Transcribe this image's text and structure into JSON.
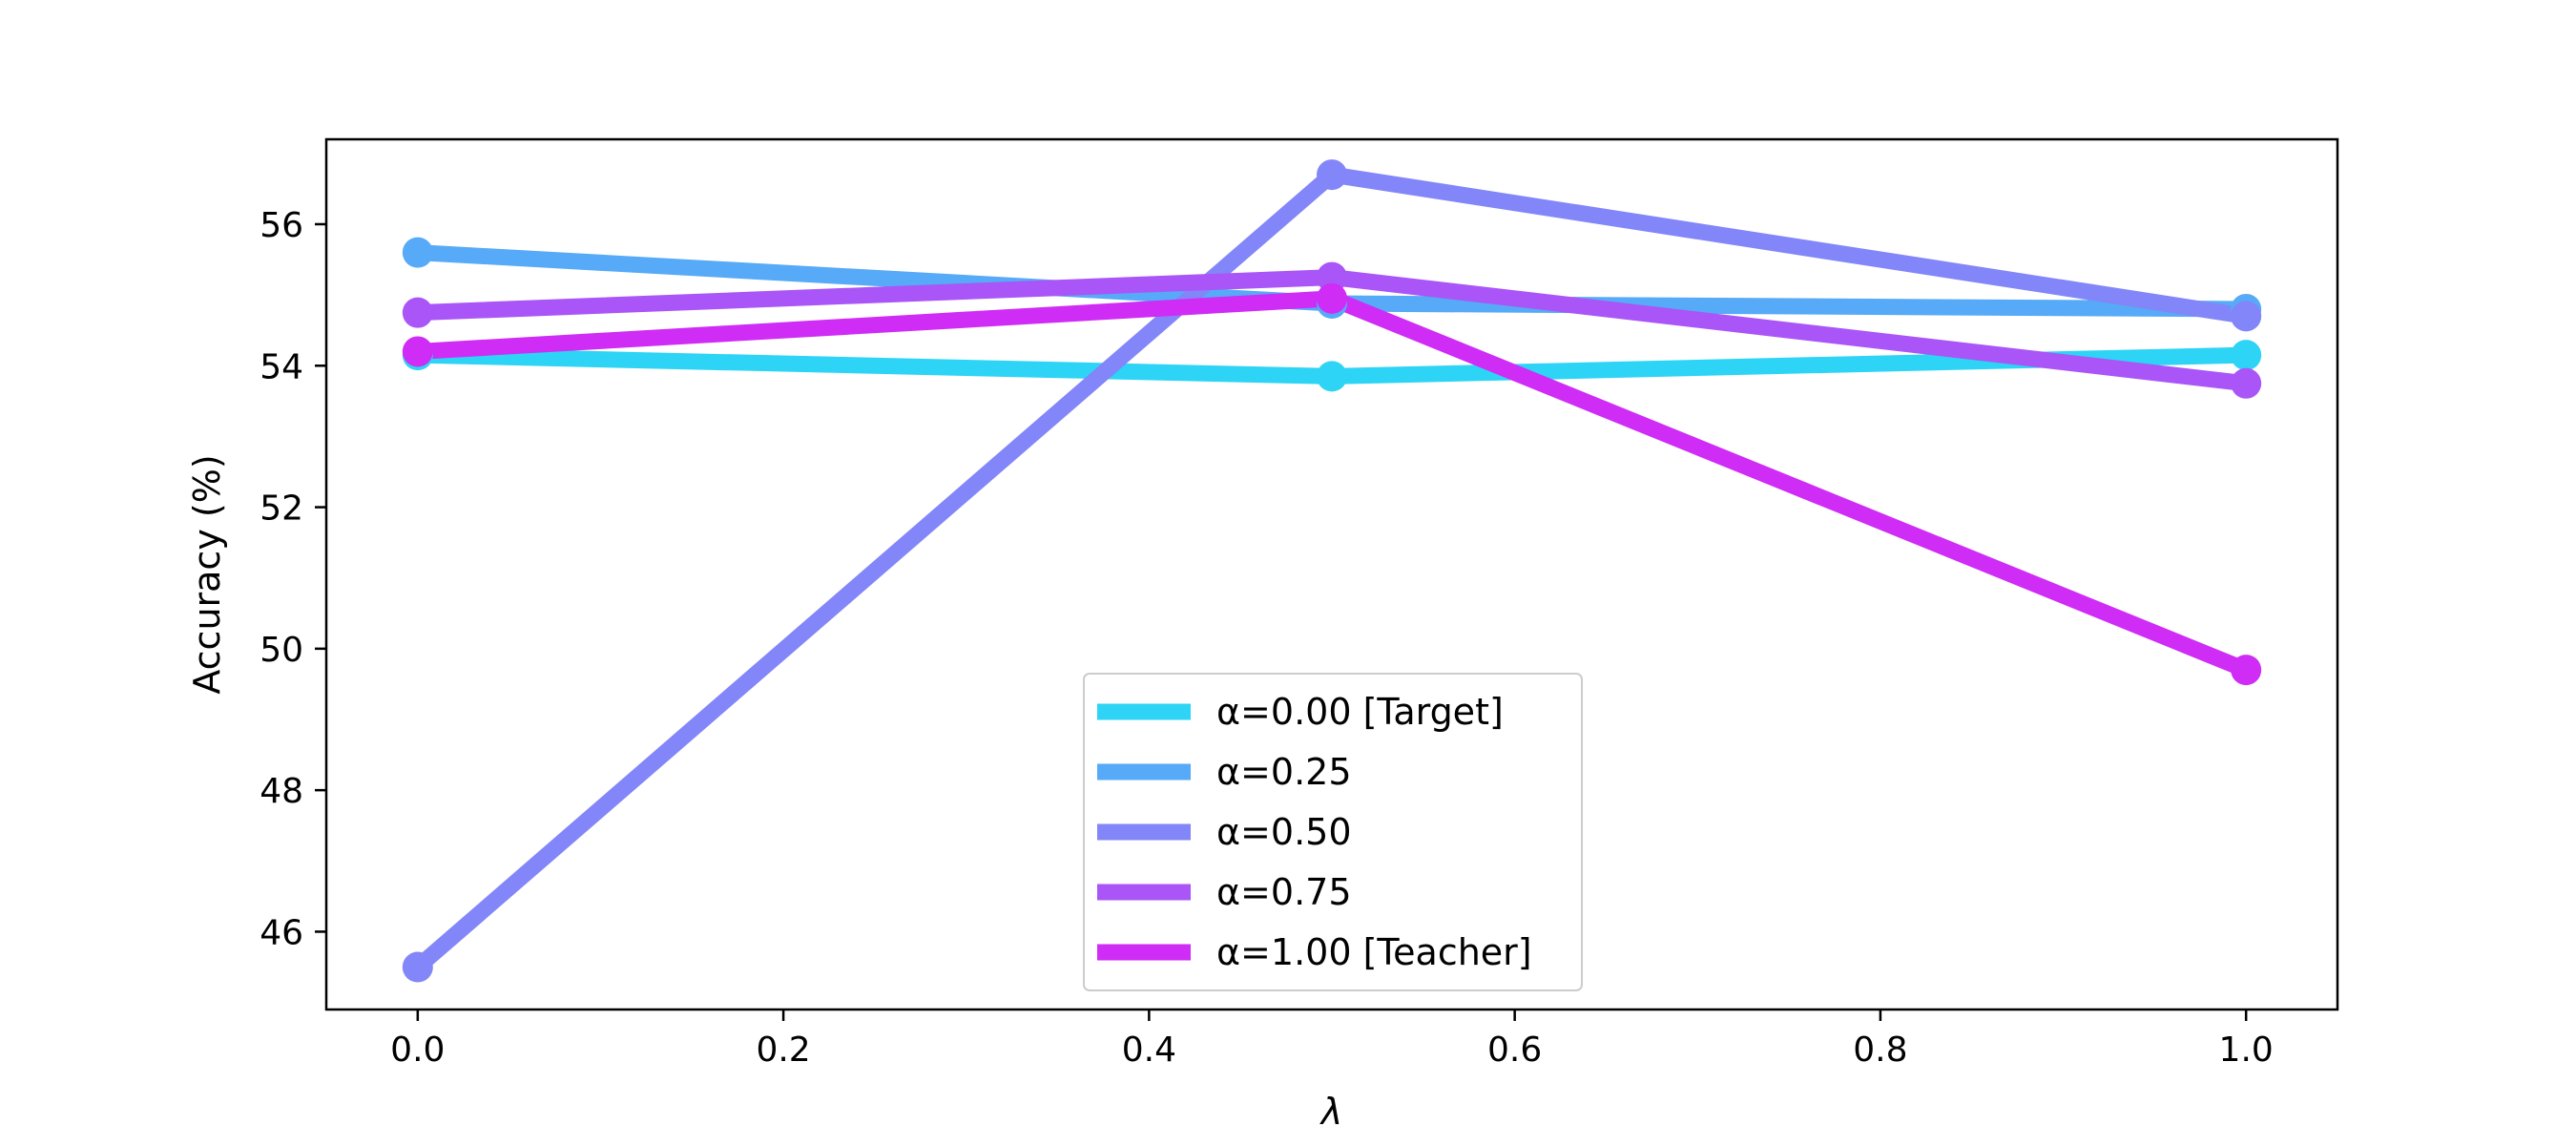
{
  "chart_data": {
    "type": "line",
    "title": "",
    "xlabel": "λ",
    "ylabel": "Accuracy (%)",
    "xlim": [
      -0.05,
      1.05
    ],
    "ylim": [
      44.9,
      57.2
    ],
    "xticks": [
      0.0,
      0.2,
      0.4,
      0.6,
      0.8,
      1.0
    ],
    "yticks": [
      46,
      48,
      50,
      52,
      54,
      56
    ],
    "grid": false,
    "legend_position": "lower-center",
    "x": [
      0.0,
      0.5,
      1.0
    ],
    "series": [
      {
        "name": "α=0.00 [Target]",
        "color": "#2dd4f5",
        "values": [
          54.15,
          53.85,
          54.15
        ]
      },
      {
        "name": "α=0.25",
        "color": "#56aaf7",
        "values": [
          55.6,
          54.88,
          54.8
        ]
      },
      {
        "name": "α=0.50",
        "color": "#8286f8",
        "values": [
          45.5,
          56.7,
          54.7
        ]
      },
      {
        "name": "α=0.75",
        "color": "#aa55f7",
        "values": [
          54.75,
          55.25,
          53.75
        ]
      },
      {
        "name": "α=1.00 [Teacher]",
        "color": "#cf2cf6",
        "values": [
          54.2,
          54.95,
          49.7
        ]
      }
    ]
  }
}
